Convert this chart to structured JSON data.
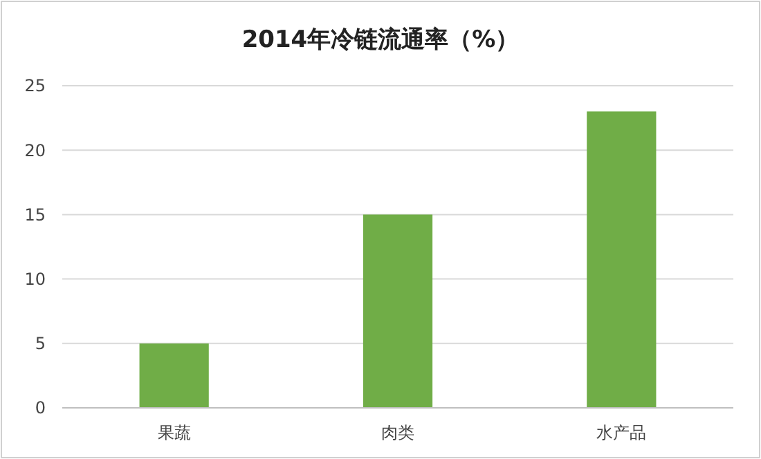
{
  "chart_data": {
    "type": "bar",
    "title": "2014年冷链流通率（%）",
    "categories": [
      "果蔬",
      "肉类",
      "水产品"
    ],
    "values": [
      5,
      15,
      23
    ],
    "color": "#70ad47",
    "ylim": [
      0,
      25
    ],
    "yticks": [
      0,
      5,
      10,
      15,
      20,
      25
    ],
    "grid": "y"
  }
}
